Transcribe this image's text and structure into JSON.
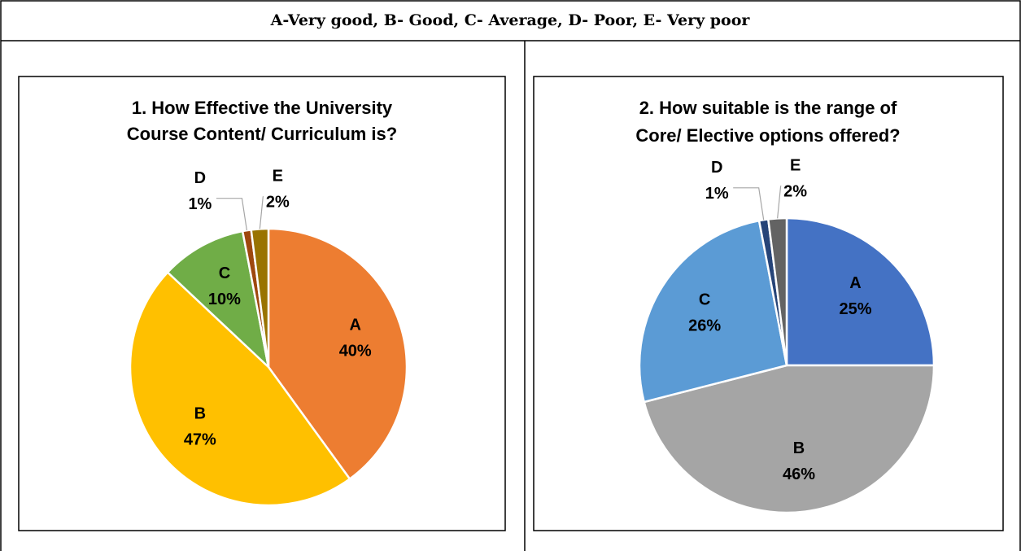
{
  "header": {
    "title": "A-Very good, B- Good, C- Average, D- Poor, E- Very poor"
  },
  "chart_data": [
    {
      "type": "pie",
      "title": [
        "1. How Effective the University",
        "Course Content/ Curriculum is?"
      ],
      "categories": [
        "A",
        "B",
        "C",
        "D",
        "E"
      ],
      "values": [
        40,
        47,
        10,
        1,
        2
      ],
      "value_labels": [
        "40%",
        "47%",
        "10%",
        "1%",
        "2%"
      ],
      "colors": [
        "#ed7d31",
        "#ffc000",
        "#70ad47",
        "#9e480e",
        "#997300"
      ]
    },
    {
      "type": "pie",
      "title": [
        "2. How suitable is the range of",
        "Core/ Elective options offered?"
      ],
      "categories": [
        "A",
        "B",
        "C",
        "D",
        "E"
      ],
      "values": [
        25,
        46,
        26,
        1,
        2
      ],
      "value_labels": [
        "25%",
        "46%",
        "26%",
        "1%",
        "2%"
      ],
      "colors": [
        "#4472c4",
        "#a5a5a5",
        "#5b9bd5",
        "#264478",
        "#636363"
      ]
    }
  ]
}
